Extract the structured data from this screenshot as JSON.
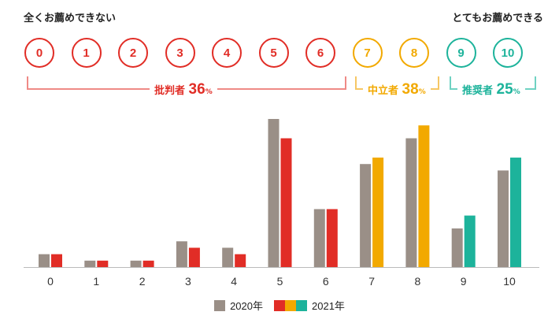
{
  "scale": {
    "left_label": "全くお薦めできない",
    "right_label": "とてもお薦めできる",
    "scores": [
      "0",
      "1",
      "2",
      "3",
      "4",
      "5",
      "6",
      "7",
      "8",
      "9",
      "10"
    ]
  },
  "groups": [
    {
      "name": "批判者",
      "percent": "36",
      "unit": "%",
      "color": "#e12d26"
    },
    {
      "name": "中立者",
      "percent": "38",
      "unit": "%",
      "color": "#f2a900"
    },
    {
      "name": "推奨者",
      "percent": "25",
      "unit": "%",
      "color": "#1db39b"
    }
  ],
  "colors": {
    "y2020": "#9a8f87",
    "detractor": "#e12d26",
    "passive": "#f2a900",
    "promoter": "#1db39b",
    "axis": "#bbbbbb"
  },
  "chart_data": {
    "type": "bar",
    "categories": [
      "0",
      "1",
      "2",
      "3",
      "4",
      "5",
      "6",
      "7",
      "8",
      "9",
      "10"
    ],
    "series": [
      {
        "name": "2020年",
        "values": [
          2.0,
          1.0,
          1.0,
          4.0,
          3.0,
          23.0,
          9.0,
          16.0,
          20.0,
          6.0,
          15.0
        ]
      },
      {
        "name": "2021年",
        "values": [
          2.0,
          1.0,
          1.0,
          3.0,
          2.0,
          20.0,
          9.0,
          17.0,
          22.0,
          8.0,
          17.0
        ]
      }
    ],
    "ylim": [
      0,
      23
    ],
    "xlabel": "",
    "ylabel": "",
    "legend_position": "bottom"
  }
}
